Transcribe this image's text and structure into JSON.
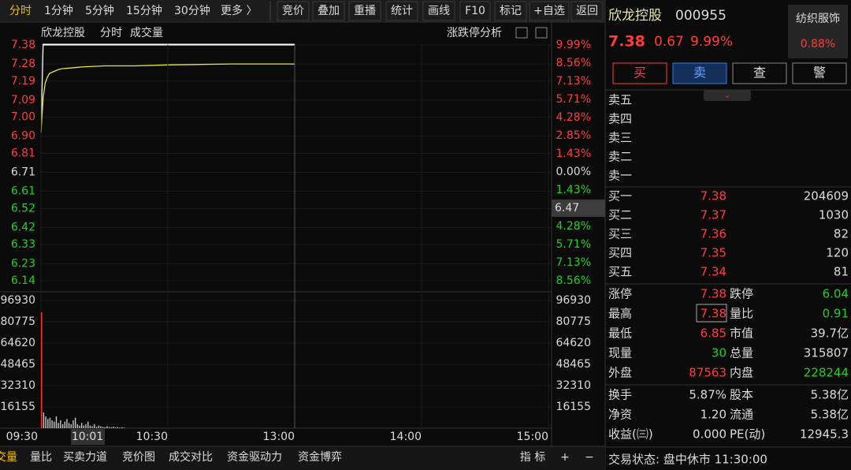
{
  "toolbar": {
    "periods": [
      "分时",
      "1分钟",
      "5分钟",
      "15分钟",
      "30分钟",
      "更多 〉"
    ],
    "tools": [
      "竞价",
      "叠加",
      "重播",
      "统计",
      "画线",
      "F10",
      "标记",
      "+自选",
      "返回"
    ]
  },
  "chart_header": {
    "name": "欣龙控股",
    "mode": "分时",
    "sub": "成交量",
    "analysis": "涨跌停分析"
  },
  "chart_data": [
    {
      "type": "line",
      "x": [
        0,
        1,
        2,
        3,
        4,
        6,
        8,
        10,
        15,
        20,
        30,
        45,
        60,
        90,
        120
      ],
      "series": [
        {
          "color": "#ffffff",
          "values": [
            6.92,
            7.38,
            7.38,
            7.38,
            7.38,
            7.38,
            7.38,
            7.38,
            7.38,
            7.38,
            7.38,
            7.38,
            7.38,
            7.38,
            7.38
          ]
        },
        {
          "color": "#e8e838",
          "values": [
            6.92,
            7.1,
            7.18,
            7.21,
            7.23,
            7.24,
            7.25,
            7.255,
            7.26,
            7.265,
            7.27,
            7.27,
            7.275,
            7.28,
            7.28
          ]
        }
      ],
      "xlim": [
        0,
        240
      ],
      "ylim": [
        6.14,
        7.38
      ],
      "yticks": [
        7.38,
        7.28,
        7.19,
        7.09,
        {
          "value": 7.0,
          "label": "7.00"
        },
        {
          "value": 6.9,
          "label": "6.90"
        },
        6.81,
        6.71,
        6.61,
        6.52,
        6.42,
        6.33,
        6.23,
        6.14
      ],
      "y2lim": [
        -8.56,
        9.99
      ],
      "y2ticks": [
        {
          "value": 9.99,
          "label": "9.99%"
        },
        {
          "value": 8.56,
          "label": "8.56%"
        },
        {
          "value": 7.13,
          "label": "7.13%"
        },
        {
          "value": 5.71,
          "label": "5.71%"
        },
        {
          "value": 4.28,
          "label": "4.28%"
        },
        {
          "value": 2.85,
          "label": "2.85%"
        },
        {
          "value": 1.43,
          "label": "1.43%"
        },
        {
          "value": 0,
          "label": "0.00%"
        },
        {
          "value": -1.43,
          "label": "1.43%"
        },
        {
          "value": -4.28,
          "label": "4.28%"
        },
        {
          "value": -5.71,
          "label": "5.71%"
        },
        {
          "value": -7.13,
          "label": "7.13%"
        },
        {
          "value": -8.56,
          "label": "8.56%"
        }
      ]
    },
    {
      "type": "bar",
      "x": [
        0,
        1,
        2,
        3,
        4,
        5,
        6,
        7,
        8,
        9,
        10,
        11,
        12,
        13,
        14,
        15,
        16,
        17,
        18,
        19,
        20,
        21,
        22,
        23,
        24,
        25,
        26,
        27,
        28,
        29,
        30,
        31,
        32,
        33,
        34,
        35,
        36,
        37,
        38,
        39
      ],
      "values": [
        88000,
        12000,
        9000,
        7000,
        8000,
        6000,
        5000,
        9000,
        4000,
        6000,
        3000,
        5000,
        7000,
        4000,
        3000,
        6000,
        8000,
        3000,
        2000,
        4000,
        2000,
        3000,
        5000,
        2000,
        1500,
        3000,
        1000,
        2000,
        1500,
        1000,
        800,
        1500,
        900,
        700,
        1200,
        600,
        800,
        500,
        700,
        400
      ],
      "color": "#c8c8c8",
      "xlim": [
        0,
        240
      ],
      "xticks": [
        {
          "value": 0,
          "label": "09:30"
        },
        {
          "value": 60,
          "label": "10:30"
        },
        {
          "value": 120,
          "label": "13:00"
        },
        {
          "value": 180,
          "label": "14:00"
        },
        {
          "value": 240,
          "label": "15:00"
        }
      ],
      "ylim": [
        0,
        96930
      ],
      "yticks": [
        96930,
        80775,
        64620,
        48465,
        32310,
        16155
      ]
    }
  ],
  "cursor": {
    "price": "6.47",
    "time": "10:01"
  },
  "bottom_tabs": [
    "交量",
    "量比",
    "买卖力道",
    "竞价图",
    "成交对比",
    "资金驱动力",
    "资金博弈"
  ],
  "bottom_tools": [
    "指 标",
    "+",
    "−"
  ],
  "quote": {
    "name": "欣龙控股",
    "code": "000955",
    "price": "7.38",
    "change": "0.67",
    "pct": "9.99%",
    "sector": "纺织服饰",
    "sector_pct": "0.88%",
    "buttons": [
      "买",
      "卖",
      "查",
      "警"
    ],
    "sell": [
      "卖五",
      "卖四",
      "卖三",
      "卖二",
      "卖一"
    ],
    "buy": [
      [
        "买一",
        "7.38",
        "204609"
      ],
      [
        "买二",
        "7.37",
        "1030"
      ],
      [
        "买三",
        "7.36",
        "82"
      ],
      [
        "买四",
        "7.35",
        "120"
      ],
      [
        "买五",
        "7.34",
        "81"
      ]
    ],
    "stats": [
      [
        "涨停",
        "7.38",
        "跌停",
        "6.04"
      ],
      [
        "最高",
        "7.38",
        "量比",
        "0.91"
      ],
      [
        "最低",
        "6.85",
        "市值",
        "39.7亿"
      ],
      [
        "现量",
        "30",
        "总量",
        "315807"
      ],
      [
        "外盘",
        "87563",
        "内盘",
        "228244"
      ]
    ],
    "finance": [
      [
        "换手",
        "5.87%",
        "股本",
        "5.38亿"
      ],
      [
        "净资",
        "1.20",
        "流通",
        "5.38亿"
      ],
      [
        "收益(㈢)",
        "0.000",
        "PE(动)",
        "12945.3"
      ]
    ],
    "status": "交易状态: 盘中休市 11:30:00"
  }
}
